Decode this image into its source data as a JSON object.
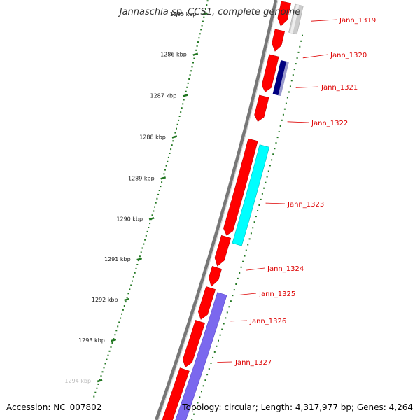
{
  "title": "Jannaschia sp. CCS1, complete genome",
  "footer": {
    "accession": "Accession: NC_007802",
    "summary": "Topology: circular; Length: 4,317,977 bp; Genes: 4,264"
  },
  "ruler": {
    "labels": [
      "1285 kbp",
      "1286 kbp",
      "1287 kbp",
      "1288 kbp",
      "1289 kbp",
      "1290 kbp",
      "1291 kbp",
      "1292 kbp",
      "1293 kbp",
      "1294 kbp"
    ]
  },
  "gene_labels": [
    "Jann_1319",
    "Jann_1320",
    "Jann_1321",
    "Jann_1322",
    "Jann_1323",
    "Jann_1324",
    "Jann_1325",
    "Jann_1326",
    "Jann_1327"
  ],
  "colors": {
    "backbone": "#777777",
    "cds": "#ff0000",
    "ruler": "#227722",
    "label": "#dd0000",
    "cyan_feature": "#00ffff",
    "navy_feature": "#000080",
    "purple_feature": "#7b68ee",
    "gray_feature": "#cccccc"
  }
}
